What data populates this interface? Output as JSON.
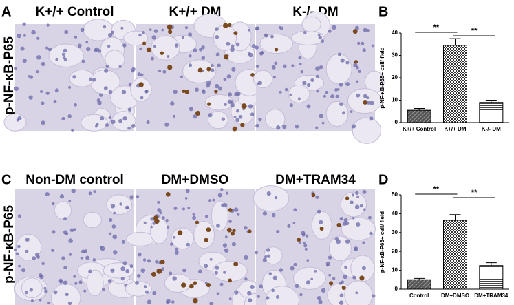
{
  "figure": {
    "rows": [
      {
        "label": "A",
        "stain_label": "p-NF-κB-P65",
        "images": [
          "K+/+ Control",
          "K+/+ DM",
          "K-/- DM"
        ]
      },
      {
        "label": "C",
        "stain_label": "p-NF-κB-P65",
        "images": [
          "Non-DM control",
          "DM+DMSO",
          "DM+TRAM34"
        ]
      }
    ]
  },
  "chart_data": [
    {
      "type": "bar",
      "panel": "B",
      "y_label": "p-NF-κB-P65+ cell/ field",
      "categories": [
        "K+/+ Control",
        "K+/+ DM",
        "K-/- DM"
      ],
      "values": [
        5.5,
        34.5,
        9
      ],
      "errors": [
        0.8,
        3,
        1
      ],
      "ylim": [
        0,
        40
      ],
      "yticks": [
        0,
        10,
        20,
        30,
        40
      ],
      "annotations": [
        {
          "text": "**",
          "from": "K+/+ Control",
          "to": "K+/+ DM"
        },
        {
          "text": "**",
          "from": "K+/+ DM",
          "to": "K-/- DM"
        }
      ]
    },
    {
      "type": "bar",
      "panel": "D",
      "y_label": "p-NF-κB-P65+ cell/ field",
      "categories": [
        "Control",
        "DM+DMSO",
        "DM+TRAM34"
      ],
      "values": [
        5,
        36.5,
        12.5
      ],
      "errors": [
        0.7,
        3,
        1.5
      ],
      "ylim": [
        0,
        50
      ],
      "yticks": [
        0,
        10,
        20,
        30,
        40,
        50
      ],
      "annotations": [
        {
          "text": "**",
          "from": "Control",
          "to": "DM+DMSO"
        },
        {
          "text": "**",
          "from": "DM+DMSO",
          "to": "DM+TRAM34"
        }
      ]
    }
  ]
}
